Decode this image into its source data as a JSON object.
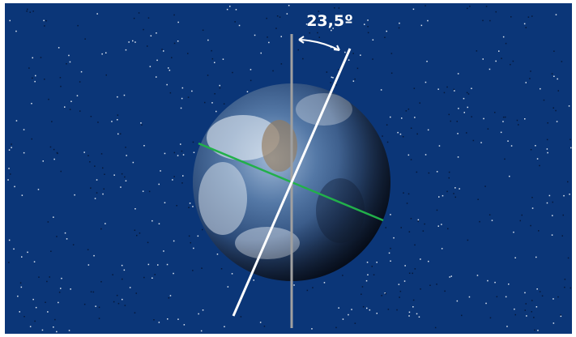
{
  "annotation": {
    "label": "23,5º"
  }
}
